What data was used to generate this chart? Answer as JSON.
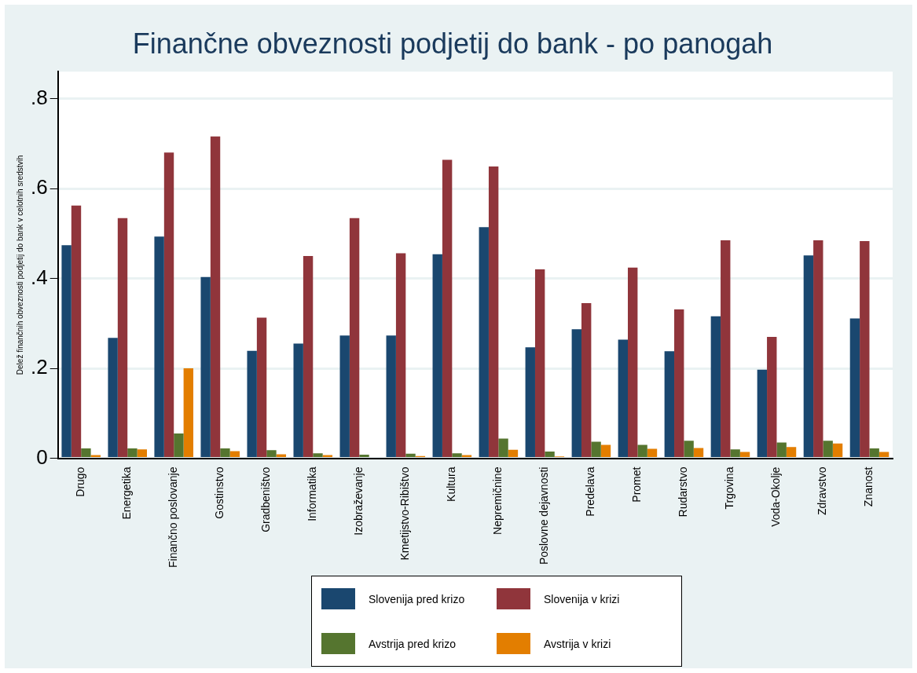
{
  "chart_data": {
    "type": "bar",
    "title": "Finančne obveznosti podjetij do bank - po panogah",
    "ylabel": "Delež finančnih obveznosti podjetij do bank v celotnih sredstvih",
    "categories": [
      "Drugo",
      "Energetika",
      "Finančno poslovanje",
      "Gostinstvo",
      "Gradbeništvo",
      "Informatika",
      "Izobraževanje",
      "Kmetijstvo-Ribištvo",
      "Kultura",
      "Nepremičnine",
      "Poslovne dejavnosti",
      "Predelava",
      "Promet",
      "Rudarstvo",
      "Trgovina",
      "Voda-Okolje",
      "Zdravstvo",
      "Znanost"
    ],
    "series": [
      {
        "name": "Slovenija pred krizo",
        "color": "#1a476f",
        "values": [
          0.474,
          0.268,
          0.493,
          0.403,
          0.239,
          0.255,
          0.273,
          0.273,
          0.454,
          0.514,
          0.247,
          0.287,
          0.264,
          0.238,
          0.316,
          0.197,
          0.451,
          0.311
        ]
      },
      {
        "name": "Slovenija v krizi",
        "color": "#90353b",
        "values": [
          0.562,
          0.534,
          0.68,
          0.716,
          0.313,
          0.45,
          0.534,
          0.456,
          0.664,
          0.649,
          0.42,
          0.345,
          0.424,
          0.331,
          0.485,
          0.27,
          0.485,
          0.483
        ]
      },
      {
        "name": "Avstrija pred krizo",
        "color": "#55752f",
        "values": [
          0.022,
          0.022,
          0.055,
          0.022,
          0.018,
          0.011,
          0.008,
          0.01,
          0.011,
          0.044,
          0.015,
          0.037,
          0.03,
          0.039,
          0.02,
          0.035,
          0.039,
          0.022
        ]
      },
      {
        "name": "Avstrija v krizi",
        "color": "#e37e00",
        "values": [
          0.007,
          0.02,
          0.2,
          0.016,
          0.009,
          0.007,
          0,
          0.005,
          0.007,
          0.019,
          0.004,
          0.03,
          0.021,
          0.023,
          0.014,
          0.025,
          0.033,
          0.014
        ]
      }
    ],
    "ylim": [
      0,
      0.86
    ],
    "yticks": [
      0,
      {
        "value": 0.2,
        "label": ".2"
      },
      {
        "value": 0.4,
        "label": ".4"
      },
      {
        "value": 0.6,
        "label": ".6"
      },
      {
        "value": 0.8,
        "label": ".8"
      }
    ],
    "grid": "y",
    "legend": "bottom"
  }
}
